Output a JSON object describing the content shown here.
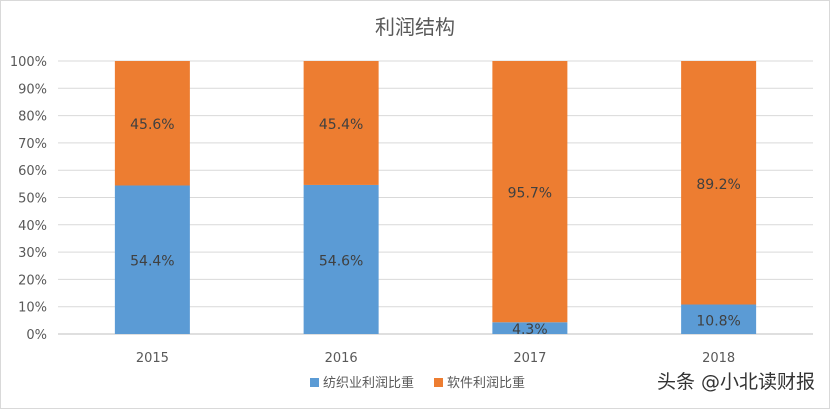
{
  "chart_data": {
    "type": "bar",
    "stacked": true,
    "title": "利润结构",
    "categories": [
      "2015",
      "2016",
      "2017",
      "2018"
    ],
    "series": [
      {
        "name": "纺织业利润比重",
        "color": "#5b9bd5",
        "values": [
          54.4,
          54.6,
          4.3,
          10.8
        ],
        "labels": [
          "54.4%",
          "54.6%",
          "4.3%",
          "10.8%"
        ]
      },
      {
        "name": "软件利润比重",
        "color": "#ed7d31",
        "values": [
          45.6,
          45.4,
          95.7,
          89.2
        ],
        "labels": [
          "45.6%",
          "45.4%",
          "95.7%",
          "89.2%"
        ]
      }
    ],
    "yticks": [
      "0%",
      "10%",
      "20%",
      "30%",
      "40%",
      "50%",
      "60%",
      "70%",
      "80%",
      "90%",
      "100%"
    ],
    "ylim": [
      0,
      100
    ],
    "grid": true,
    "legend_position": "bottom"
  },
  "watermark": "头条 @小北读财报"
}
